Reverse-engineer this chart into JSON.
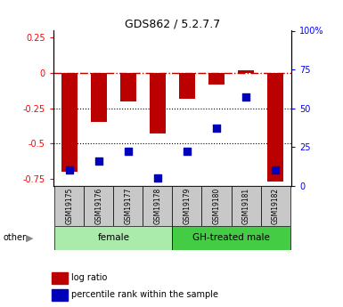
{
  "title": "GDS862 / 5.2.7.7",
  "samples": [
    "GSM19175",
    "GSM19176",
    "GSM19177",
    "GSM19178",
    "GSM19179",
    "GSM19180",
    "GSM19181",
    "GSM19182"
  ],
  "log_ratio": [
    -0.7,
    -0.35,
    -0.2,
    -0.43,
    -0.18,
    -0.08,
    0.02,
    -0.77
  ],
  "percentile_rank": [
    10,
    16,
    22,
    5,
    22,
    37,
    57,
    10
  ],
  "groups": [
    {
      "label": "female",
      "start": 0,
      "end": 4,
      "color": "#AAEAAA"
    },
    {
      "label": "GH-treated male",
      "start": 4,
      "end": 8,
      "color": "#44CC44"
    }
  ],
  "ylim_left": [
    -0.8,
    0.3
  ],
  "ylim_right": [
    0,
    100
  ],
  "bar_color": "#BB0000",
  "dot_color": "#0000BB",
  "left_yticks": [
    0.25,
    0,
    -0.25,
    -0.5,
    -0.75
  ],
  "right_yticks": [
    100,
    75,
    50,
    25,
    0
  ],
  "bar_width": 0.55,
  "dot_size": 28,
  "other_label": "other"
}
